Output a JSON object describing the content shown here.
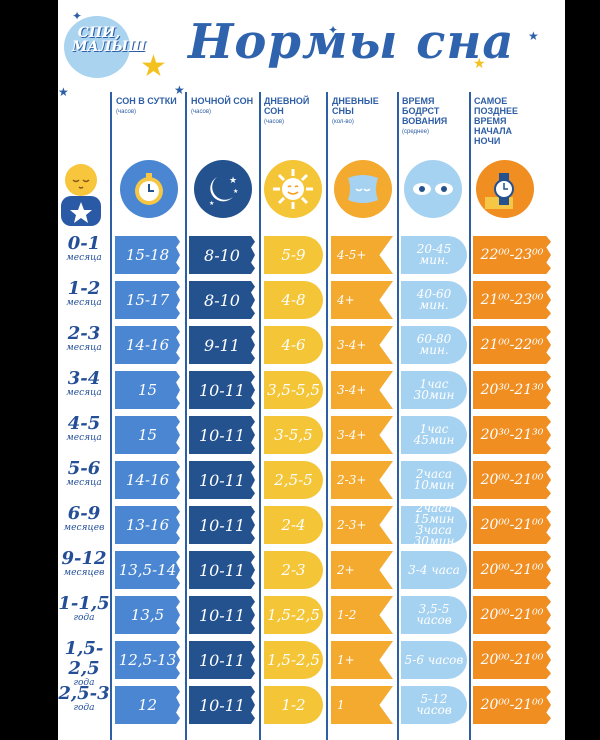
{
  "logo": {
    "text": "СПИ, МАЛЫШ"
  },
  "title": "Нормы сна",
  "headers": [
    {
      "label": "СОН В СУТКИ",
      "sub": "(часов)"
    },
    {
      "label": "НОЧНОЙ СОН",
      "sub": "(часов)"
    },
    {
      "label": "ДНЕВНОЙ СОН",
      "sub": "(часов)"
    },
    {
      "label": "ДНЕВНЫЕ СНЫ",
      "sub": "(кол-во)"
    },
    {
      "label": "ВРЕМЯ БОДРСТ ВОВАНИЯ",
      "sub": "(среднее)"
    },
    {
      "label": "САМОЕ ПОЗДНЕЕ ВРЕМЯ НАЧАЛА НОЧИ",
      "sub": ""
    }
  ],
  "icons": [
    "baby-icon",
    "pocket-watch-icon",
    "moon-stars-icon",
    "sun-icon",
    "pillow-icon",
    "open-eyes-icon",
    "wristwatch-icon"
  ],
  "colors": {
    "total": "#4a86d2",
    "night": "#23528f",
    "day": "#f4c536",
    "naps": "#f3aa2e",
    "awake": "#a6d2f1",
    "latest": "#f08e22",
    "text": "#2e5ea5"
  },
  "rows": [
    {
      "age": "0-1",
      "unit": "месяца",
      "total": "15-18",
      "night": "8-10",
      "day": "5-9",
      "naps": "4-5+",
      "awake": "20-45 мин.",
      "latest": "22⁰⁰-23⁰⁰"
    },
    {
      "age": "1-2",
      "unit": "месяца",
      "total": "15-17",
      "night": "8-10",
      "day": "4-8",
      "naps": "4+",
      "awake": "40-60 мин.",
      "latest": "21⁰⁰-23⁰⁰"
    },
    {
      "age": "2-3",
      "unit": "месяца",
      "total": "14-16",
      "night": "9-11",
      "day": "4-6",
      "naps": "3-4+",
      "awake": "60-80 мин.",
      "latest": "21⁰⁰-22⁰⁰"
    },
    {
      "age": "3-4",
      "unit": "месяца",
      "total": "15",
      "night": "10-11",
      "day": "3,5-5,5",
      "naps": "3-4+",
      "awake": "1час 30мин",
      "latest": "20³⁰-21³⁰"
    },
    {
      "age": "4-5",
      "unit": "месяца",
      "total": "15",
      "night": "10-11",
      "day": "3-5,5",
      "naps": "3-4+",
      "awake": "1час 45мин",
      "latest": "20³⁰-21³⁰"
    },
    {
      "age": "5-6",
      "unit": "месяца",
      "total": "14-16",
      "night": "10-11",
      "day": "2,5-5",
      "naps": "2-3+",
      "awake": "2часа 10мин",
      "latest": "20⁰⁰-21⁰⁰"
    },
    {
      "age": "6-9",
      "unit": "месяцев",
      "total": "13-16",
      "night": "10-11",
      "day": "2-4",
      "naps": "2-3+",
      "awake": "2часа 15мин 3часа 30мин",
      "latest": "20⁰⁰-21⁰⁰"
    },
    {
      "age": "9-12",
      "unit": "месяцев",
      "total": "13,5-14",
      "night": "10-11",
      "day": "2-3",
      "naps": "2+",
      "awake": "3-4 часа",
      "latest": "20⁰⁰-21⁰⁰"
    },
    {
      "age": "1-1,5",
      "unit": "года",
      "total": "13,5",
      "night": "10-11",
      "day": "1,5-2,5",
      "naps": "1-2",
      "awake": "3,5-5 часов",
      "latest": "20⁰⁰-21⁰⁰"
    },
    {
      "age": "1,5-2,5",
      "unit": "года",
      "total": "12,5-13",
      "night": "10-11",
      "day": "1,5-2,5",
      "naps": "1+",
      "awake": "5-6 часов",
      "latest": "20⁰⁰-21⁰⁰"
    },
    {
      "age": "2,5-3",
      "unit": "года",
      "total": "12",
      "night": "10-11",
      "day": "1-2",
      "naps": "1",
      "awake": "5-12 часов",
      "latest": "20⁰⁰-21⁰⁰"
    }
  ]
}
